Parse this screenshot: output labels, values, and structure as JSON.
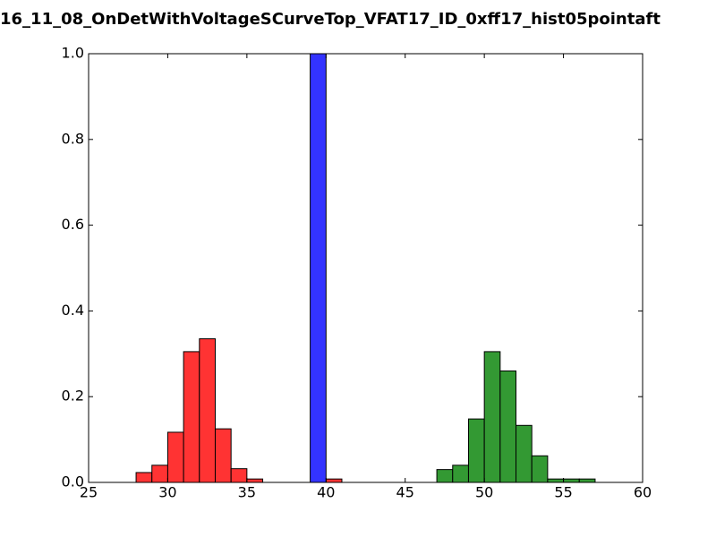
{
  "chart_data": {
    "type": "histogram",
    "title": "16_11_08_OnDetWithVoltageSCurveTop_VFAT17_ID_0xff17_hist05pointaft",
    "series": [
      {
        "color": "#ff3333",
        "bins": [
          28,
          29,
          30,
          31,
          32,
          33,
          34,
          35,
          36,
          37,
          38,
          39,
          40,
          41
        ],
        "values": [
          0.023,
          0.04,
          0.117,
          0.305,
          0.335,
          0.125,
          0.032,
          0.008,
          0,
          0,
          0,
          0,
          0.008
        ]
      },
      {
        "color": "#3333ff",
        "bins": [
          39,
          40
        ],
        "values": [
          1.0
        ]
      },
      {
        "color": "#339933",
        "bins": [
          47,
          48,
          49,
          50,
          51,
          52,
          53,
          54,
          55,
          56,
          57
        ],
        "values": [
          0.03,
          0.04,
          0.148,
          0.305,
          0.26,
          0.133,
          0.062,
          0.008,
          0.008,
          0.008
        ]
      }
    ],
    "xlim": [
      25,
      60
    ],
    "xticks": [
      25,
      30,
      35,
      40,
      45,
      50,
      55,
      60
    ],
    "ylim": [
      0,
      1
    ],
    "yticks": [
      {
        "value": 0,
        "label": "0.0"
      },
      0.2,
      0.4,
      0.6,
      0.8,
      {
        "value": 1,
        "label": "1.0"
      }
    ],
    "grid": false
  }
}
